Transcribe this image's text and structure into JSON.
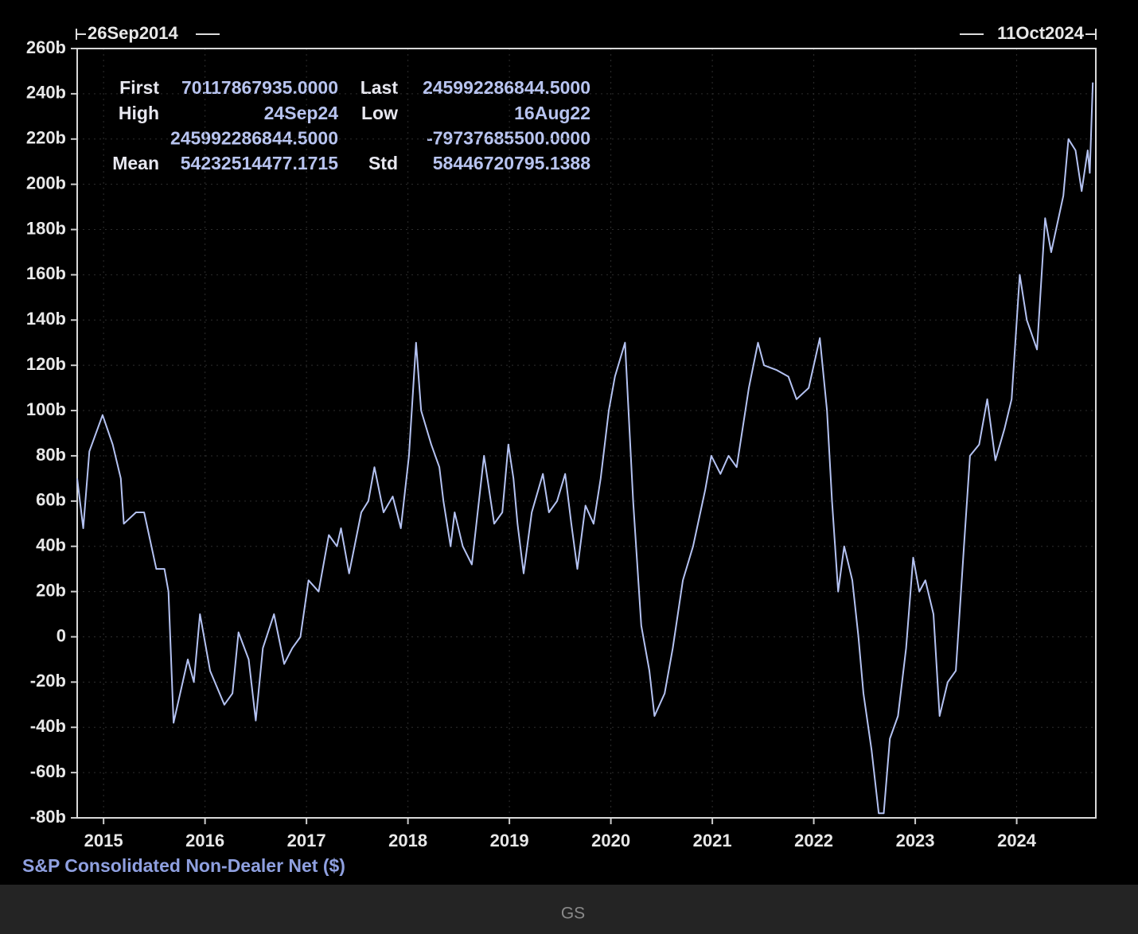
{
  "chart_data": {
    "type": "line",
    "start_label": "26Sep2014",
    "end_label": "11Oct2024",
    "stats": [
      [
        "First",
        "70117867935.0000",
        "Last",
        "245992286844.5000"
      ],
      [
        "High",
        "24Sep24",
        "Low",
        "16Aug22"
      ],
      [
        "",
        "245992286844.5000",
        "",
        "-79737685500.0000"
      ],
      [
        "Mean",
        "54232514477.1715",
        "Std",
        "58446720795.1388"
      ]
    ],
    "x": [
      2014.74,
      2014.8,
      2014.86,
      2014.99,
      2015.09,
      2015.17,
      2015.2,
      2015.32,
      2015.4,
      2015.52,
      2015.6,
      2015.64,
      2015.69,
      2015.83,
      2015.89,
      2015.95,
      2016.05,
      2016.19,
      2016.27,
      2016.33,
      2016.43,
      2016.5,
      2016.57,
      2016.68,
      2016.78,
      2016.86,
      2016.94,
      2017.02,
      2017.12,
      2017.22,
      2017.3,
      2017.34,
      2017.42,
      2017.54,
      2017.61,
      2017.67,
      2017.76,
      2017.85,
      2017.93,
      2018.01,
      2018.08,
      2018.13,
      2018.23,
      2018.31,
      2018.35,
      2018.42,
      2018.46,
      2018.54,
      2018.63,
      2018.75,
      2018.85,
      2018.93,
      2018.99,
      2019.04,
      2019.08,
      2019.14,
      2019.22,
      2019.33,
      2019.39,
      2019.47,
      2019.55,
      2019.61,
      2019.67,
      2019.75,
      2019.83,
      2019.9,
      2019.98,
      2020.04,
      2020.14,
      2020.22,
      2020.3,
      2020.38,
      2020.43,
      2020.53,
      2020.61,
      2020.71,
      2020.81,
      2020.93,
      2020.99,
      2021.08,
      2021.16,
      2021.24,
      2021.36,
      2021.45,
      2021.51,
      2021.63,
      2021.75,
      2021.83,
      2021.95,
      2022.06,
      2022.13,
      2022.18,
      2022.24,
      2022.3,
      2022.38,
      2022.44,
      2022.49,
      2022.57,
      2022.64,
      2022.69,
      2022.75,
      2022.83,
      2022.91,
      2022.98,
      2023.04,
      2023.1,
      2023.18,
      2023.24,
      2023.32,
      2023.4,
      2023.48,
      2023.54,
      2023.63,
      2023.71,
      2023.79,
      2023.88,
      2023.95,
      2024.03,
      2024.1,
      2024.2,
      2024.28,
      2024.34,
      2024.46,
      2024.51,
      2024.58,
      2024.64,
      2024.7,
      2024.72,
      2024.75
    ],
    "series": [
      {
        "name": "S&P Consolidated Non-Dealer Net ($)",
        "color": "#b4c2f2",
        "values": [
          70,
          48,
          82,
          98,
          85,
          70,
          50,
          55,
          55,
          30,
          30,
          20,
          -38,
          -10,
          -20,
          10,
          -15,
          -30,
          -25,
          2,
          -10,
          -37,
          -5,
          10,
          -12,
          -5,
          0,
          25,
          20,
          45,
          40,
          48,
          28,
          55,
          60,
          75,
          55,
          62,
          48,
          80,
          130,
          100,
          85,
          75,
          60,
          40,
          55,
          40,
          32,
          80,
          50,
          55,
          85,
          70,
          50,
          28,
          55,
          72,
          55,
          60,
          72,
          50,
          30,
          58,
          50,
          70,
          100,
          115,
          130,
          60,
          5,
          -15,
          -35,
          -25,
          -5,
          25,
          40,
          65,
          80,
          72,
          80,
          75,
          110,
          130,
          120,
          118,
          115,
          105,
          110,
          132,
          100,
          60,
          20,
          40,
          25,
          0,
          -25,
          -50,
          -78,
          -78,
          -45,
          -35,
          -5,
          35,
          20,
          25,
          10,
          -35,
          -20,
          -15,
          40,
          80,
          85,
          105,
          78,
          92,
          105,
          160,
          140,
          127,
          185,
          170,
          195,
          220,
          215,
          197,
          215,
          205,
          245
        ]
      }
    ],
    "xlim": [
      2014.74,
      2024.78
    ],
    "xticks": [
      2015,
      2016,
      2017,
      2018,
      2019,
      2020,
      2021,
      2022,
      2023,
      2024
    ],
    "ylim": [
      -80,
      260
    ],
    "yticks": [
      {
        "value": 260,
        "label": "260b"
      },
      {
        "value": 240,
        "label": "240b"
      },
      {
        "value": 220,
        "label": "220b"
      },
      {
        "value": 200,
        "label": "200b"
      },
      {
        "value": 180,
        "label": "180b"
      },
      {
        "value": 160,
        "label": "160b"
      },
      {
        "value": 140,
        "label": "140b"
      },
      {
        "value": 120,
        "label": "120b"
      },
      {
        "value": 100,
        "label": "100b"
      },
      {
        "value": 80,
        "label": "80b"
      },
      {
        "value": 60,
        "label": "60b"
      },
      {
        "value": 40,
        "label": "40b"
      },
      {
        "value": 20,
        "label": "20b"
      },
      0,
      {
        "value": -20,
        "label": "-20b"
      },
      {
        "value": -40,
        "label": "-40b"
      },
      {
        "value": -60,
        "label": "-60b"
      },
      {
        "value": -80,
        "label": "-80b"
      }
    ],
    "grid": true
  },
  "footer": {
    "source": "GS"
  }
}
